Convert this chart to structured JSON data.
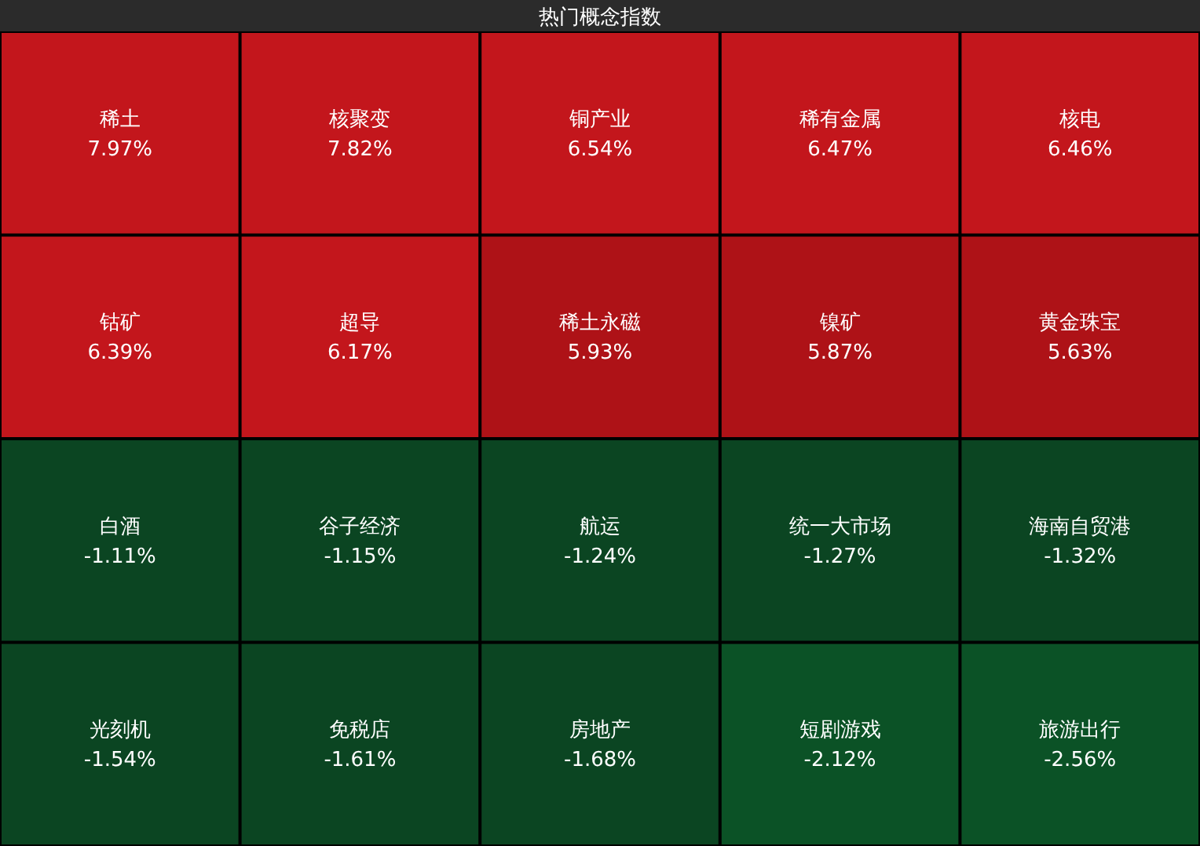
{
  "chart_data": {
    "type": "other",
    "title": "热门概念指数",
    "categories": [
      "稀土",
      "核聚变",
      "铜产业",
      "稀有金属",
      "核电",
      "钴矿",
      "超导",
      "稀土永磁",
      "镍矿",
      "黄金珠宝",
      "白酒",
      "谷子经济",
      "航运",
      "统一大市场",
      "海南自贸港",
      "光刻机",
      "免税店",
      "房地产",
      "短剧游戏",
      "旅游出行"
    ],
    "values": [
      7.97,
      7.82,
      6.54,
      6.47,
      6.46,
      6.39,
      6.17,
      5.93,
      5.87,
      5.63,
      -1.11,
      -1.15,
      -1.24,
      -1.27,
      -1.32,
      -1.54,
      -1.61,
      -1.68,
      -2.12,
      -2.56
    ],
    "value_labels": [
      "7.97%",
      "7.82%",
      "6.54%",
      "6.47%",
      "6.46%",
      "6.39%",
      "6.17%",
      "5.93%",
      "5.87%",
      "5.63%",
      "-1.11%",
      "-1.15%",
      "-1.24%",
      "-1.27%",
      "-1.32%",
      "-1.54%",
      "-1.61%",
      "-1.68%",
      "-2.12%",
      "-2.56%"
    ],
    "colors": [
      "#c3161c",
      "#c3161c",
      "#c3161c",
      "#c3161c",
      "#c3161c",
      "#c3161c",
      "#c3161c",
      "#ae1217",
      "#ae1217",
      "#ae1217",
      "#0b4522",
      "#0b4522",
      "#0b4522",
      "#0b4522",
      "#0b4522",
      "#0b4522",
      "#0b4522",
      "#0b4522",
      "#0b5226",
      "#0b5226"
    ]
  }
}
